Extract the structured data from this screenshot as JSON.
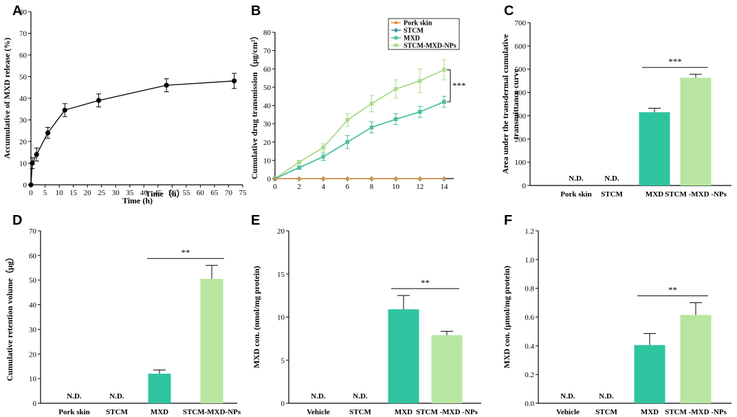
{
  "figure": {
    "panels": [
      "A",
      "B",
      "C",
      "D",
      "E",
      "F"
    ]
  },
  "colors": {
    "mxd": "#2ec4a0",
    "nps": "#b8e6a0",
    "pork": "#f28c28",
    "stcm": "#3a9ca6",
    "line_mxd": "#4dbf9f",
    "line_nps": "#a9db8c",
    "black": "#000000"
  },
  "chart_data": [
    {
      "panel": "A",
      "type": "line",
      "title": "",
      "xlabel": "Time (h)",
      "ylabel": "Accumulative of MXD release (%)",
      "xlim": [
        0,
        75
      ],
      "ylim": [
        0,
        80
      ],
      "xticks": [
        "0",
        "5",
        "10",
        "15",
        "20",
        "25",
        "30",
        "35",
        "40",
        "45",
        "50",
        "55",
        "60",
        "65",
        "70",
        "75"
      ],
      "yticks": [
        "0",
        "10",
        "20",
        "30",
        "40",
        "50",
        "60",
        "70",
        "80"
      ],
      "series": [
        {
          "name": "MXD release",
          "x": [
            0,
            0.5,
            2,
            6,
            12,
            24,
            48,
            72
          ],
          "y": [
            0,
            10,
            14,
            24,
            34.5,
            39,
            46,
            48
          ],
          "err": [
            0,
            2.5,
            3,
            2.5,
            3,
            3,
            3,
            3.5
          ]
        }
      ]
    },
    {
      "panel": "B",
      "type": "line",
      "title": "",
      "xlabel": "Time（h）",
      "ylabel": "Cumulative drug transmission（μg/cm²）",
      "xlim": [
        0,
        14.8
      ],
      "ylim": [
        0,
        80
      ],
      "xticks": [
        "0",
        "2",
        "4",
        "6",
        "8",
        "10",
        "12",
        "14"
      ],
      "yticks": [
        "0",
        "10",
        "20",
        "30",
        "40",
        "50",
        "60",
        "70",
        "80"
      ],
      "legend": [
        "Pork skin",
        "STCM",
        "MXD",
        "STCM-MXD-NPs"
      ],
      "annotation": "***",
      "series": [
        {
          "name": "Pork skin",
          "x": [
            0,
            2,
            4,
            6,
            8,
            10,
            12,
            14
          ],
          "y": [
            0,
            0,
            0,
            0,
            0,
            0,
            0,
            0
          ],
          "err": [
            0,
            0,
            0,
            0,
            0,
            0,
            0,
            0
          ]
        },
        {
          "name": "STCM",
          "x": [
            0,
            2,
            4,
            6,
            8,
            10,
            12,
            14
          ],
          "y": [
            0,
            0,
            0,
            0,
            0,
            0,
            0,
            0
          ],
          "err": [
            0,
            0,
            0,
            0,
            0,
            0,
            0,
            0
          ]
        },
        {
          "name": "MXD",
          "x": [
            0,
            2,
            4,
            6,
            8,
            10,
            12,
            14
          ],
          "y": [
            0,
            6,
            12,
            20,
            28,
            32.5,
            36.5,
            42
          ],
          "err": [
            0,
            1,
            2,
            3.5,
            3,
            3,
            3,
            3
          ]
        },
        {
          "name": "STCM-MXD-NPs",
          "x": [
            0,
            2,
            4,
            6,
            8,
            10,
            12,
            14
          ],
          "y": [
            0,
            9,
            17,
            32,
            41,
            49,
            53.5,
            59.5
          ],
          "err": [
            0,
            1,
            2,
            3.5,
            4.5,
            5,
            6.5,
            5.5
          ]
        }
      ]
    },
    {
      "panel": "C",
      "type": "bar",
      "title": "",
      "xlabel": "",
      "ylabel": "Area under the transdermal cumulative transmittance curve",
      "ylim": [
        0,
        700
      ],
      "yticks": [
        "0",
        "100",
        "200",
        "300",
        "400",
        "500",
        "600",
        "700"
      ],
      "categories": [
        "Pork skin",
        "STCM",
        "MXD",
        "STCM -MXD -NPs"
      ],
      "values": [
        null,
        null,
        315,
        463
      ],
      "errors": [
        0,
        0,
        17,
        15
      ],
      "nd_label": "N.D.",
      "annotation": "***"
    },
    {
      "panel": "D",
      "type": "bar",
      "title": "",
      "xlabel": "",
      "ylabel": "Cumulative retention volume（μg）",
      "ylim": [
        0,
        70
      ],
      "yticks": [
        "0",
        "10",
        "20",
        "30",
        "40",
        "50",
        "60",
        "70"
      ],
      "categories": [
        "Pork skin",
        "STCM",
        "MXD",
        "STCM-MXD-NPs"
      ],
      "values": [
        null,
        null,
        12,
        50.5
      ],
      "errors": [
        0,
        0,
        1.5,
        5.5
      ],
      "nd_label": "N.D.",
      "annotation": "**"
    },
    {
      "panel": "E",
      "type": "bar",
      "title": "",
      "xlabel": "",
      "ylabel": "MXD con. (nmol/mg protein)",
      "ylim": [
        0,
        20
      ],
      "yticks": [
        "0",
        "5",
        "10",
        "15",
        "20"
      ],
      "categories": [
        "Vehicle",
        "STCM",
        "MXD",
        "STCM -MXD -NPs"
      ],
      "values": [
        null,
        null,
        10.9,
        7.9
      ],
      "errors": [
        0,
        0,
        1.6,
        0.45
      ],
      "nd_label": "N.D.",
      "annotation": "**"
    },
    {
      "panel": "F",
      "type": "bar",
      "title": "",
      "xlabel": "",
      "ylabel": "MXD con. (μmol/mg protein)",
      "ylim": [
        0,
        1.2
      ],
      "yticks": [
        "0.0",
        "0.2",
        "0.4",
        "0.6",
        "0.8",
        "1.0",
        "1.2"
      ],
      "categories": [
        "Vehicle",
        "STCM",
        "MXD",
        "STCM -MXD -NPs"
      ],
      "values": [
        null,
        null,
        0.405,
        0.615
      ],
      "errors": [
        0,
        0,
        0.08,
        0.085
      ],
      "nd_label": "N.D.",
      "annotation": "**"
    }
  ]
}
